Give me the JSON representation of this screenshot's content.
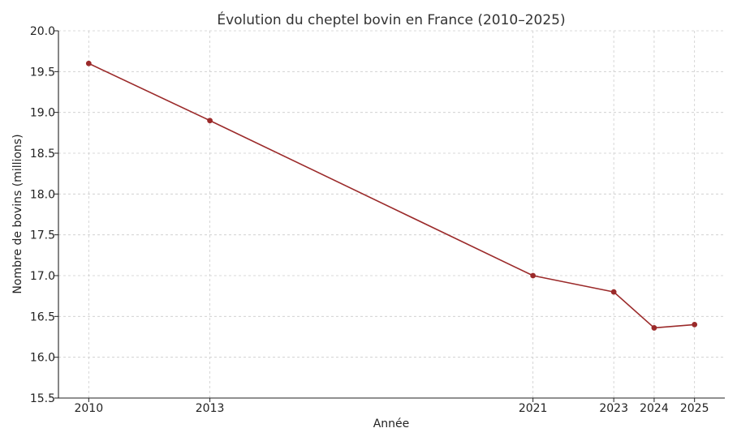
{
  "chart_data": {
    "type": "line",
    "title": "Évolution du cheptel bovin en France (2010–2025)",
    "xlabel": "Année",
    "ylabel": "Nombre de bovins (millions)",
    "x": [
      2010,
      2013,
      2021,
      2023,
      2024,
      2025
    ],
    "series": [
      {
        "values": [
          19.6,
          18.9,
          17.0,
          16.8,
          16.36,
          16.4
        ],
        "color": "#9b2a2a"
      }
    ],
    "xlim": [
      2009.25,
      2025.75
    ],
    "ylim": [
      15.5,
      20.0
    ],
    "xticks": [
      "2010",
      "2013",
      "2021",
      "2023",
      "2024",
      "2025"
    ],
    "yticks": [
      "15.5",
      "16.0",
      "16.5",
      "17.0",
      "17.5",
      "18.0",
      "18.5",
      "19.0",
      "19.5",
      "20.0"
    ],
    "grid": true,
    "legend": "none"
  }
}
